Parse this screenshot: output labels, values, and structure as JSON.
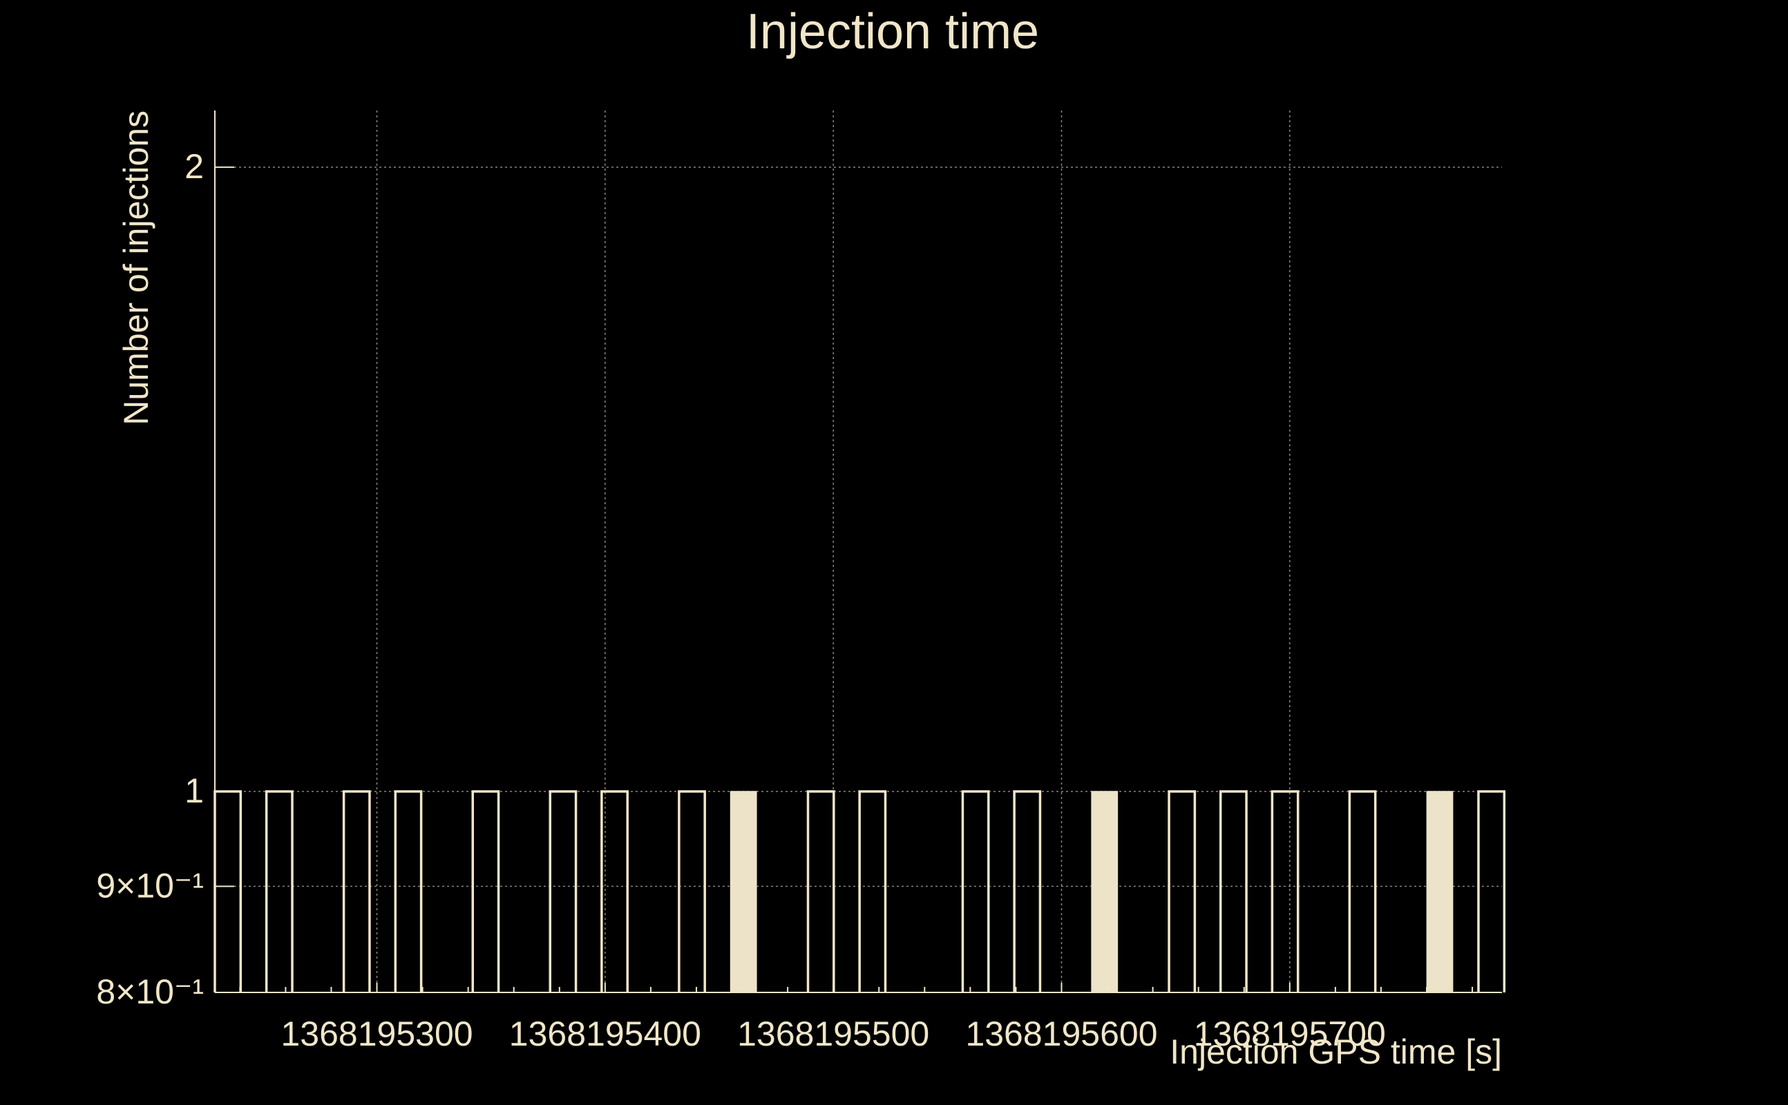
{
  "chart_data": {
    "type": "bar",
    "title": "Injection time",
    "xlabel": "Injection GPS time [s]",
    "ylabel": "Number of injections",
    "xlim": [
      1368195229,
      1368195793
    ],
    "ylim": [
      0.8,
      2.13
    ],
    "yscale": "log",
    "grid": true,
    "colors": {
      "background": "#000000",
      "foreground": "#f0e6c8",
      "fill": "#ece3c8"
    },
    "x_ticks": [
      "1368195300",
      "1368195400",
      "1368195500",
      "1368195600",
      "1368195700"
    ],
    "x_tick_values": [
      1368195300,
      1368195400,
      1368195500,
      1368195600,
      1368195700
    ],
    "y_ticks": [
      "2",
      "1",
      "9×10⁻¹",
      "8×10⁻¹"
    ],
    "y_tick_values": [
      2,
      1,
      0.9,
      0.8
    ],
    "bin_width": 11.3,
    "bars": [
      {
        "x": 1368195229.0,
        "value": 1,
        "filled": false
      },
      {
        "x": 1368195251.6,
        "value": 1,
        "filled": false
      },
      {
        "x": 1368195285.5,
        "value": 1,
        "filled": false
      },
      {
        "x": 1368195308.1,
        "value": 1,
        "filled": false
      },
      {
        "x": 1368195342.0,
        "value": 1,
        "filled": false
      },
      {
        "x": 1368195375.9,
        "value": 1,
        "filled": false
      },
      {
        "x": 1368195398.5,
        "value": 1,
        "filled": false
      },
      {
        "x": 1368195432.4,
        "value": 1,
        "filled": false
      },
      {
        "x": 1368195455.0,
        "value": 1,
        "filled": true
      },
      {
        "x": 1368195488.9,
        "value": 1,
        "filled": false
      },
      {
        "x": 1368195511.5,
        "value": 1,
        "filled": false
      },
      {
        "x": 1368195556.7,
        "value": 1,
        "filled": false
      },
      {
        "x": 1368195579.3,
        "value": 1,
        "filled": false
      },
      {
        "x": 1368195613.2,
        "value": 1,
        "filled": true
      },
      {
        "x": 1368195647.1,
        "value": 1,
        "filled": false
      },
      {
        "x": 1368195669.7,
        "value": 1,
        "filled": false
      },
      {
        "x": 1368195692.3,
        "value": 1,
        "filled": false
      },
      {
        "x": 1368195726.2,
        "value": 1,
        "filled": false
      },
      {
        "x": 1368195760.1,
        "value": 1,
        "filled": true
      },
      {
        "x": 1368195782.7,
        "value": 1,
        "filled": false
      }
    ]
  }
}
